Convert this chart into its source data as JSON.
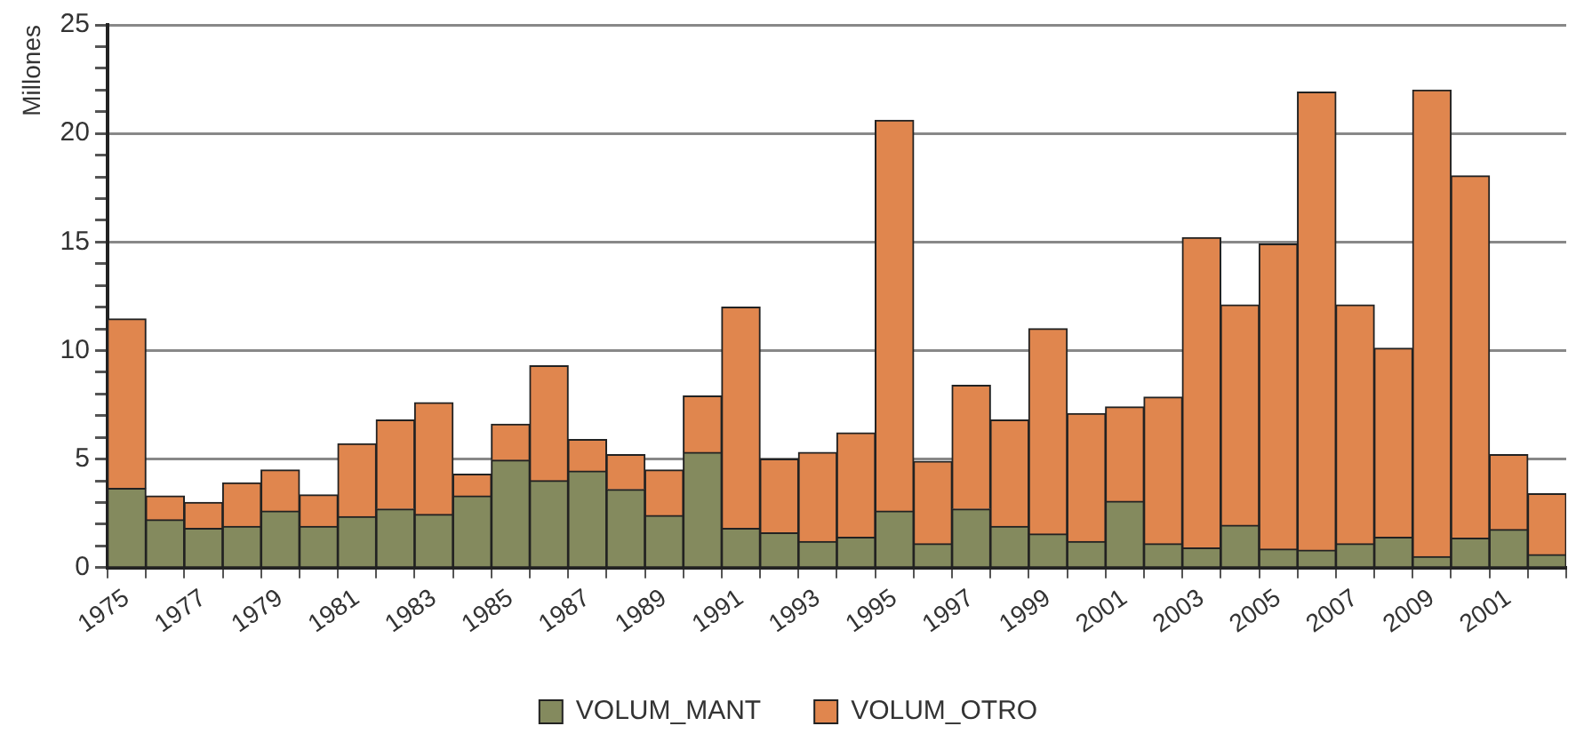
{
  "chart_data": {
    "type": "bar",
    "ylabel": "Millones",
    "stacked": true,
    "grid": "y",
    "legend": "bottom",
    "categories": [
      "1975",
      null,
      "1977",
      null,
      "1979",
      null,
      "1981",
      null,
      "1983",
      null,
      "1985",
      null,
      "1987",
      null,
      "1989",
      null,
      "1991",
      null,
      "1993",
      null,
      "1995",
      null,
      "1997",
      null,
      "1999",
      null,
      "2001",
      null,
      "2003",
      null,
      "2005",
      null,
      "2007",
      null,
      "2009",
      null,
      "2001",
      null
    ],
    "ylim": [
      0,
      25
    ],
    "yticks": [
      0,
      {
        "value": 1,
        "label": null
      },
      {
        "value": 2,
        "label": null
      },
      {
        "value": 3,
        "label": null
      },
      {
        "value": 4,
        "label": null
      },
      5,
      {
        "value": 6,
        "label": null
      },
      {
        "value": 7,
        "label": null
      },
      {
        "value": 8,
        "label": null
      },
      {
        "value": 9,
        "label": null
      },
      10,
      {
        "value": 11,
        "label": null
      },
      {
        "value": 12,
        "label": null
      },
      {
        "value": 13,
        "label": null
      },
      {
        "value": 14,
        "label": null
      },
      15,
      {
        "value": 16,
        "label": null
      },
      {
        "value": 17,
        "label": null
      },
      {
        "value": 18,
        "label": null
      },
      {
        "value": 19,
        "label": null
      },
      20,
      {
        "value": 21,
        "label": null
      },
      {
        "value": 22,
        "label": null
      },
      {
        "value": 23,
        "label": null
      },
      {
        "value": 24,
        "label": null
      },
      25
    ],
    "series": [
      {
        "name": "VOLUM_MANT",
        "color": "#848a5e",
        "values": [
          3.65,
          2.2,
          1.8,
          1.9,
          2.6,
          1.9,
          2.35,
          2.7,
          2.45,
          3.3,
          4.95,
          4.0,
          4.45,
          3.6,
          2.4,
          5.3,
          1.8,
          1.6,
          1.2,
          1.4,
          2.6,
          1.1,
          2.7,
          1.9,
          1.55,
          1.2,
          3.05,
          1.1,
          0.9,
          1.95,
          0.85,
          0.8,
          1.1,
          1.4,
          0.5,
          1.35,
          1.75,
          0.6
        ]
      },
      {
        "name": "VOLUM_OTRO",
        "color": "#e0864e",
        "values": [
          7.8,
          1.1,
          1.2,
          2.0,
          1.9,
          1.45,
          3.35,
          4.1,
          5.15,
          1.0,
          1.65,
          5.3,
          1.45,
          1.6,
          2.1,
          2.6,
          10.2,
          3.4,
          4.1,
          4.8,
          18.0,
          3.8,
          5.7,
          4.9,
          9.45,
          5.9,
          4.35,
          6.75,
          14.3,
          10.15,
          14.05,
          21.1,
          11.0,
          8.7,
          21.5,
          16.7,
          3.45,
          2.8
        ]
      }
    ]
  }
}
